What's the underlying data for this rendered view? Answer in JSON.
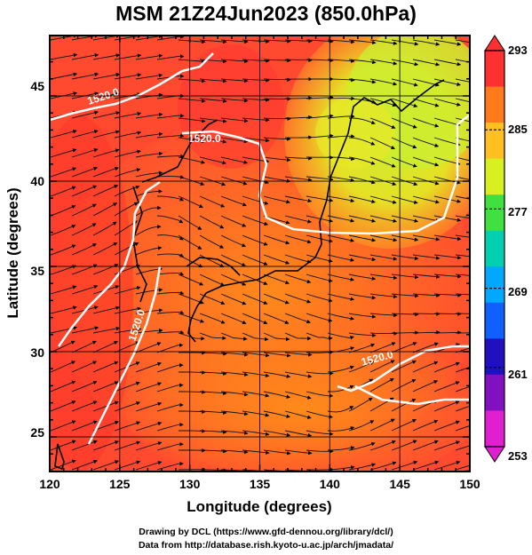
{
  "title": "MSM 21Z24Jun2023 (850.0hPa)",
  "x_axis": {
    "label": "Longitude (degrees)",
    "ticks": [
      "120",
      "125",
      "130",
      "135",
      "140",
      "145",
      "150"
    ]
  },
  "y_axis": {
    "label": "Latitude  (degrees)",
    "ticks": [
      "25",
      "30",
      "35",
      "40",
      "45"
    ]
  },
  "colorbar": {
    "ticks": [
      "293",
      "285",
      "277",
      "269",
      "261",
      "253"
    ],
    "colors": [
      "#ff3030",
      "#ff7a1a",
      "#ffc020",
      "#d8f020",
      "#40e040",
      "#00d0b0",
      "#00a8ff",
      "#1060ff",
      "#2010c0",
      "#8010c0",
      "#e020d0"
    ]
  },
  "contour_labels": [
    "1520.0",
    "1520.0",
    "1520.0",
    "1520.0"
  ],
  "footer": {
    "line1": "Drawing by DCL (https://www.gfd-dennou.org/library/dcl/)",
    "line2": "Data from http://database.rish.kyoto-u.ac.jp/arch/jmadata/"
  }
}
